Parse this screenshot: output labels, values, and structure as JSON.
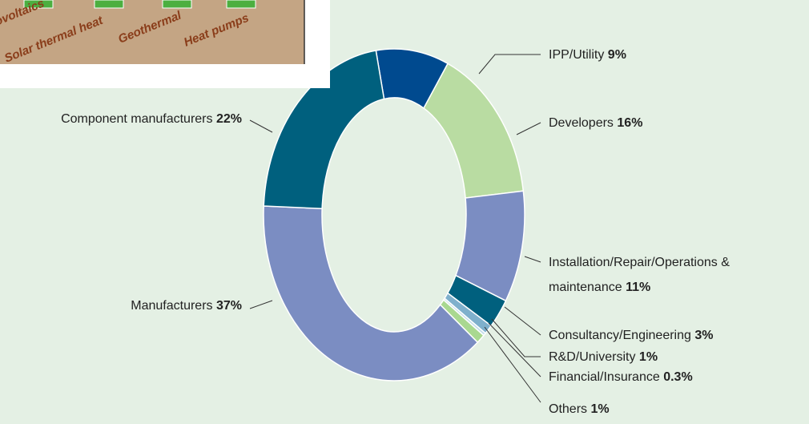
{
  "chart_data": {
    "type": "donut",
    "categories": [
      "IPP/Utility",
      "Developers",
      "Installation/Repair/Operations & maintenance",
      "Consultancy/Engineering",
      "R&D/University",
      "Financial/Insurance",
      "Others",
      "Manufacturers",
      "Component manufacturers"
    ],
    "values": [
      9,
      16,
      11,
      3,
      1,
      0.3,
      1,
      37,
      22
    ],
    "value_labels": [
      "9%",
      "16%",
      "11%",
      "3%",
      "1%",
      "0.3%",
      "1%",
      "37%",
      "22%"
    ],
    "colors": [
      "#004a8f",
      "#b9dca2",
      "#7b8dc2",
      "#00607e",
      "#7fb0cc",
      "#c4dcea",
      "#a9d890",
      "#7b8dc2",
      "#00607e"
    ]
  },
  "overlay": {
    "labels": [
      "ovoltaics",
      "Solar thermal heat",
      "Geothermal",
      "Heat pumps"
    ]
  }
}
